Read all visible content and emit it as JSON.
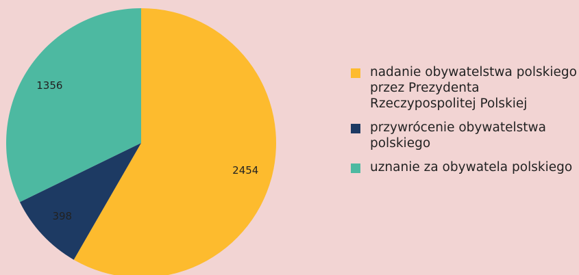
{
  "chart_data": {
    "type": "pie",
    "categories": [
      "nadanie obywatelstwa polskiego przez Prezydenta Rzeczypospolitej Polskiej",
      "przywrócenie obywatelstwa polskiego",
      "uznanie za obywatela polskiego"
    ],
    "values": [
      2454,
      398,
      1356
    ],
    "colors": [
      "#fdbb2e",
      "#1d3a63",
      "#4db9a1"
    ]
  }
}
